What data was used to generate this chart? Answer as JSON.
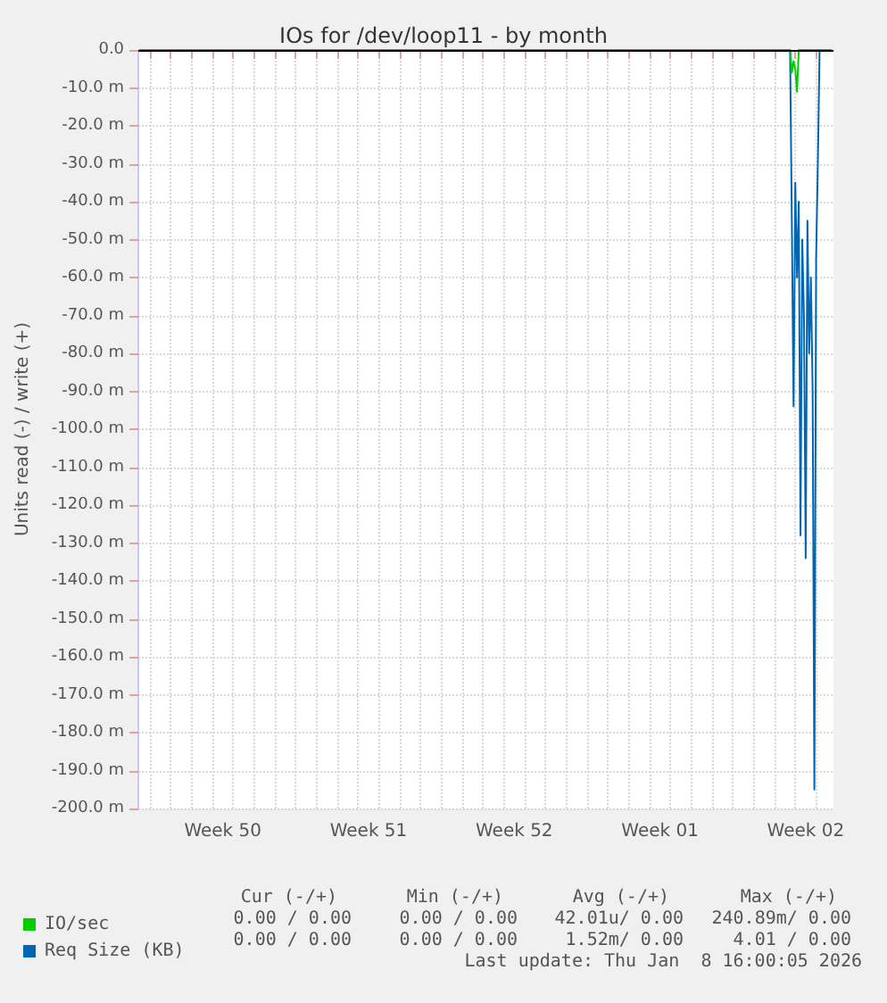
{
  "chart_data": {
    "type": "line",
    "title": "IOs for /dev/loop11 - by month",
    "ylabel": "Units read (-) / write (+)",
    "x": [
      "2025-12-07T12:00",
      "2026-01-07T16:00",
      "2026-01-07T18:00",
      "2026-01-07T20:00",
      "2026-01-07T22:00",
      "2026-01-08T00:00",
      "2026-01-08T02:00",
      "2026-01-08T04:00",
      "2026-01-08T06:00",
      "2026-01-08T08:00",
      "2026-01-08T10:00",
      "2026-01-08T12:00",
      "2026-01-08T14:00",
      "2026-01-08T16:00",
      "2026-01-08T18:00",
      "2026-01-08T20:00",
      "2026-01-08T22:00",
      "2026-01-09T00:00",
      "2026-01-09T02:00",
      "2026-01-09T04:00",
      "2026-01-09T18:00"
    ],
    "series": [
      {
        "name": "Req Size (KB)",
        "color": "#0066b3",
        "values": [
          0,
          0,
          0,
          -45,
          -94,
          -35,
          -60,
          -40,
          -128,
          -50,
          -70,
          -134,
          -45,
          -80,
          -60,
          -90,
          -195,
          -55,
          -30,
          0,
          0
        ]
      },
      {
        "name": "IO/sec",
        "color": "#00cc00",
        "values": [
          0,
          0,
          0,
          -6,
          -3,
          -5,
          -11,
          0,
          0,
          0,
          0,
          0,
          0,
          0,
          0,
          0,
          0,
          0,
          0,
          0,
          0
        ]
      }
    ],
    "xlim": [
      "2025-12-07T10:40",
      "2026-01-09T20:00"
    ],
    "xticks": [
      {
        "value": "2025-12-11T12:00",
        "label": "Week 50"
      },
      {
        "value": "2025-12-18T12:00",
        "label": "Week 51"
      },
      {
        "value": "2025-12-25T12:00",
        "label": "Week 52"
      },
      {
        "value": "2026-01-01T12:00",
        "label": "Week 01"
      },
      {
        "value": "2026-01-08T12:00",
        "label": "Week 02"
      },
      {
        "value": "2025-12-08T00:00",
        "label": null
      },
      {
        "value": "2025-12-09T00:00",
        "label": null
      },
      {
        "value": "2025-12-10T00:00",
        "label": null
      },
      {
        "value": "2025-12-11T00:00",
        "label": null
      },
      {
        "value": "2025-12-12T00:00",
        "label": null
      },
      {
        "value": "2025-12-13T00:00",
        "label": null
      },
      {
        "value": "2025-12-14T00:00",
        "label": null
      },
      {
        "value": "2025-12-15T00:00",
        "label": null
      },
      {
        "value": "2025-12-16T00:00",
        "label": null
      },
      {
        "value": "2025-12-17T00:00",
        "label": null
      },
      {
        "value": "2025-12-18T00:00",
        "label": null
      },
      {
        "value": "2025-12-19T00:00",
        "label": null
      },
      {
        "value": "2025-12-20T00:00",
        "label": null
      },
      {
        "value": "2025-12-21T00:00",
        "label": null
      },
      {
        "value": "2025-12-22T00:00",
        "label": null
      },
      {
        "value": "2025-12-23T00:00",
        "label": null
      },
      {
        "value": "2025-12-24T00:00",
        "label": null
      },
      {
        "value": "2025-12-25T00:00",
        "label": null
      },
      {
        "value": "2025-12-26T00:00",
        "label": null
      },
      {
        "value": "2025-12-27T00:00",
        "label": null
      },
      {
        "value": "2025-12-28T00:00",
        "label": null
      },
      {
        "value": "2025-12-29T00:00",
        "label": null
      },
      {
        "value": "2025-12-30T00:00",
        "label": null
      },
      {
        "value": "2025-12-31T00:00",
        "label": null
      },
      {
        "value": "2026-01-01T00:00",
        "label": null
      },
      {
        "value": "2026-01-02T00:00",
        "label": null
      },
      {
        "value": "2026-01-03T00:00",
        "label": null
      },
      {
        "value": "2026-01-04T00:00",
        "label": null
      },
      {
        "value": "2026-01-05T00:00",
        "label": null
      },
      {
        "value": "2026-01-06T00:00",
        "label": null
      },
      {
        "value": "2026-01-07T00:00",
        "label": null
      },
      {
        "value": "2026-01-08T00:00",
        "label": null
      },
      {
        "value": "2026-01-09T00:00",
        "label": null
      }
    ],
    "ylim": [
      -200,
      0
    ],
    "yticks": [
      {
        "value": -200,
        "label": "-200.0 m"
      },
      {
        "value": -190,
        "label": "-190.0 m"
      },
      {
        "value": -180,
        "label": "-180.0 m"
      },
      {
        "value": -170,
        "label": "-170.0 m"
      },
      {
        "value": -160,
        "label": "-160.0 m"
      },
      {
        "value": -150,
        "label": "-150.0 m"
      },
      {
        "value": -140,
        "label": "-140.0 m"
      },
      {
        "value": -130,
        "label": "-130.0 m"
      },
      {
        "value": -120,
        "label": "-120.0 m"
      },
      {
        "value": -110,
        "label": "-110.0 m"
      },
      {
        "value": -100,
        "label": "-100.0 m"
      },
      {
        "value": -90,
        "label": "-90.0 m"
      },
      {
        "value": -80,
        "label": "-80.0 m"
      },
      {
        "value": -70,
        "label": "-70.0 m"
      },
      {
        "value": -60,
        "label": "-60.0 m"
      },
      {
        "value": -50,
        "label": "-50.0 m"
      },
      {
        "value": -40,
        "label": "-40.0 m"
      },
      {
        "value": -30,
        "label": "-30.0 m"
      },
      {
        "value": -20,
        "label": "-20.0 m"
      },
      {
        "value": -10,
        "label": "-10.0 m"
      },
      {
        "value": 0,
        "label": "0.0"
      }
    ],
    "ref_lines": [
      {
        "axis": "y",
        "value": 0,
        "color": "#000000"
      }
    ],
    "grid": true,
    "legend": "bottom left",
    "marker": "none",
    "line_style": "solid",
    "annotations": [
      "Cur (-/+)",
      "Min (-/+)",
      "Avg (-/+)",
      "Max (-/+)",
      "0.00 / 0.00",
      "0.00 / 0.00",
      "42.01u/ 0.00",
      "240.89m/ 0.00",
      "0.00 / 0.00",
      "0.00 / 0.00",
      "1.52m/ 0.00",
      "4.01 / 0.00",
      "Last update: Thu Jan  8 16:00:05 2026"
    ]
  }
}
